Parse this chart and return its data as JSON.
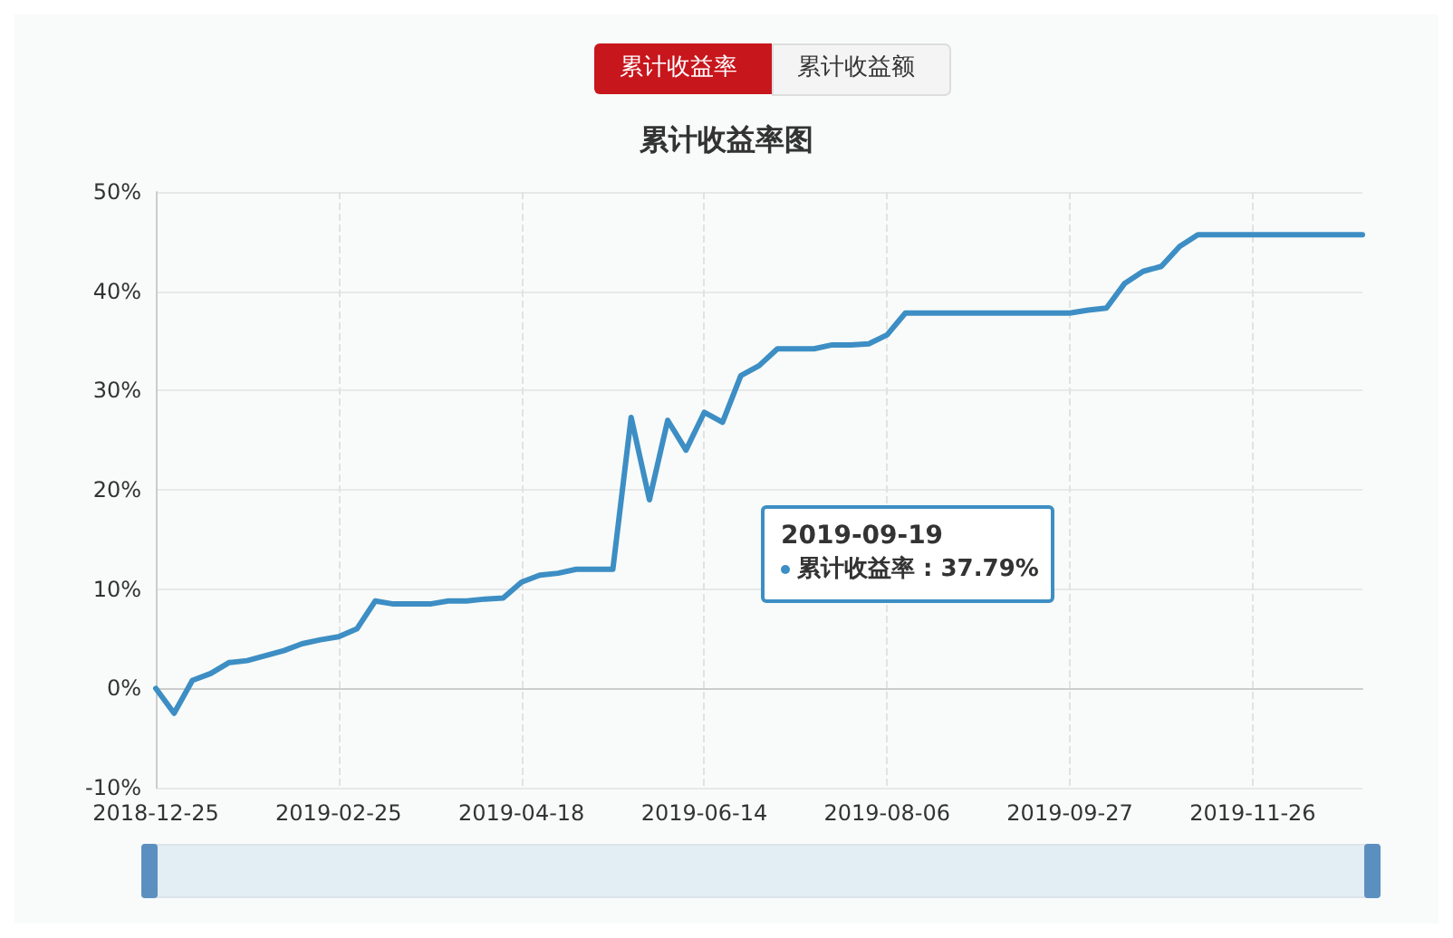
{
  "chart_data": {
    "type": "line",
    "title": "累计收益率图",
    "annotations": [
      "累计收益率",
      "累计收益额",
      "2019-09-19",
      "累计收益率 : 37.79%"
    ],
    "categories": [
      "2018-12-25",
      null,
      null,
      null,
      null,
      null,
      null,
      null,
      null,
      null,
      "2019-02-25",
      null,
      null,
      null,
      null,
      null,
      null,
      null,
      null,
      null,
      "2019-04-18",
      null,
      null,
      null,
      null,
      null,
      null,
      null,
      null,
      null,
      "2019-06-14",
      null,
      null,
      null,
      null,
      null,
      null,
      null,
      null,
      null,
      "2019-08-06",
      null,
      null,
      null,
      null,
      null,
      null,
      null,
      null,
      null,
      "2019-09-27",
      null,
      null,
      null,
      null,
      null,
      null,
      null,
      null,
      null,
      "2019-11-26",
      null,
      null,
      null,
      null,
      null,
      null
    ],
    "series": [
      {
        "color": "#3d8ec4",
        "values": [
          0,
          -2.5,
          0.8,
          1.5,
          2.6,
          2.8,
          3.3,
          3.8,
          4.5,
          4.9,
          5.2,
          6.0,
          8.8,
          8.5,
          8.5,
          8.5,
          8.8,
          8.8,
          9.0,
          9.1,
          10.7,
          11.4,
          11.6,
          12.0,
          12.0,
          12.0,
          27.3,
          19.0,
          27.0,
          24.0,
          27.8,
          26.8,
          31.5,
          32.5,
          34.2,
          34.2,
          34.2,
          34.6,
          34.6,
          34.7,
          35.6,
          37.8,
          37.8,
          37.8,
          37.8,
          37.8,
          37.8,
          37.8,
          37.8,
          37.8,
          37.8,
          38.1,
          38.3,
          40.8,
          42.0,
          42.5,
          44.5,
          45.7,
          45.7,
          45.7,
          45.7,
          45.7,
          45.7,
          45.7,
          45.7,
          45.7,
          45.7
        ]
      }
    ],
    "ylim": [
      -10,
      50
    ],
    "yticks": [
      {
        "value": -10,
        "label": "-10%"
      },
      {
        "value": 0,
        "label": "0%"
      },
      {
        "value": 10,
        "label": "10%"
      },
      {
        "value": 20,
        "label": "20%"
      },
      {
        "value": 30,
        "label": "30%"
      },
      {
        "value": 40,
        "label": "40%"
      },
      {
        "value": 50,
        "label": "50%"
      }
    ],
    "grid": true,
    "marker": "none",
    "line_style": "solid"
  }
}
